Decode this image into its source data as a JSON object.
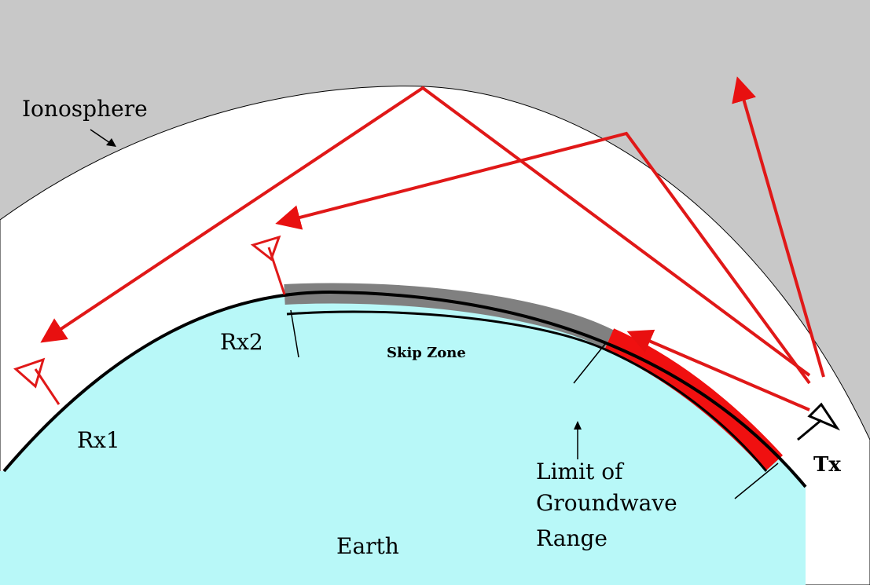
{
  "labels": {
    "ionosphere": "Ionosphere",
    "rx1": "Rx1",
    "rx2": "Rx2",
    "skip_zone": "Skip Zone",
    "tx": "Tx",
    "limit": [
      "Limit of",
      "Groundwave",
      "Range"
    ],
    "earth": "Earth"
  }
}
